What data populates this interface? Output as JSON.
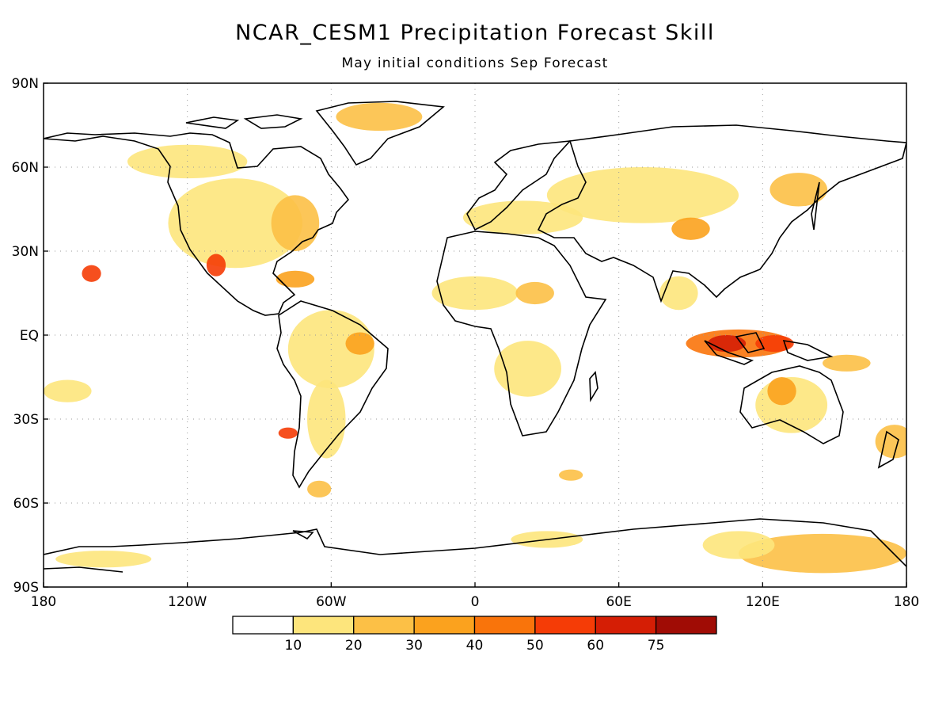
{
  "title": "NCAR_CESM1 Precipitation Forecast Skill",
  "subtitle": "May initial conditions  Sep Forecast",
  "map": {
    "lon_range": [
      -180,
      180
    ],
    "lat_range": [
      -90,
      90
    ],
    "x_ticks": [
      {
        "label": "180",
        "lon": -180
      },
      {
        "label": "120W",
        "lon": -120
      },
      {
        "label": "60W",
        "lon": -60
      },
      {
        "label": "0",
        "lon": 0
      },
      {
        "label": "60E",
        "lon": 60
      },
      {
        "label": "120E",
        "lon": 120
      },
      {
        "label": "180",
        "lon": 180
      }
    ],
    "y_ticks": [
      {
        "label": "90N",
        "lat": 90
      },
      {
        "label": "60N",
        "lat": 60
      },
      {
        "label": "30N",
        "lat": 30
      },
      {
        "label": "EQ",
        "lat": 0
      },
      {
        "label": "30S",
        "lat": -30
      },
      {
        "label": "60S",
        "lat": -60
      },
      {
        "label": "90S",
        "lat": -90
      }
    ],
    "gridlines": "dotted"
  },
  "colorbar": {
    "labels": [
      "10",
      "20",
      "30",
      "40",
      "50",
      "60",
      "75"
    ],
    "colors": [
      "#ffffff",
      "#fde57c",
      "#fcc046",
      "#fba21e",
      "#f9740b",
      "#f53c06",
      "#d51e05",
      "#a00c05"
    ]
  },
  "skill_regions": [
    {
      "lon": -100,
      "lat": 40,
      "rx": 28,
      "ry": 16,
      "level": 1
    },
    {
      "lon": -75,
      "lat": 40,
      "rx": 10,
      "ry": 10,
      "level": 2
    },
    {
      "lon": -120,
      "lat": 62,
      "rx": 25,
      "ry": 6,
      "level": 1
    },
    {
      "lon": -40,
      "lat": 78,
      "rx": 18,
      "ry": 5,
      "level": 2
    },
    {
      "lon": -108,
      "lat": 25,
      "rx": 4,
      "ry": 4,
      "level": 5
    },
    {
      "lon": -160,
      "lat": 22,
      "rx": 4,
      "ry": 3,
      "level": 5
    },
    {
      "lon": -75,
      "lat": 20,
      "rx": 8,
      "ry": 3,
      "level": 3
    },
    {
      "lon": -60,
      "lat": -5,
      "rx": 18,
      "ry": 14,
      "level": 1
    },
    {
      "lon": -48,
      "lat": -3,
      "rx": 6,
      "ry": 4,
      "level": 3
    },
    {
      "lon": -62,
      "lat": -30,
      "rx": 8,
      "ry": 14,
      "level": 1
    },
    {
      "lon": -78,
      "lat": -35,
      "rx": 4,
      "ry": 2,
      "level": 5
    },
    {
      "lon": -65,
      "lat": -55,
      "rx": 5,
      "ry": 3,
      "level": 2
    },
    {
      "lon": 0,
      "lat": 15,
      "rx": 18,
      "ry": 6,
      "level": 1
    },
    {
      "lon": 25,
      "lat": 15,
      "rx": 8,
      "ry": 4,
      "level": 2
    },
    {
      "lon": 22,
      "lat": -12,
      "rx": 14,
      "ry": 10,
      "level": 1
    },
    {
      "lon": 20,
      "lat": 42,
      "rx": 25,
      "ry": 6,
      "level": 1
    },
    {
      "lon": 70,
      "lat": 50,
      "rx": 40,
      "ry": 10,
      "level": 1
    },
    {
      "lon": 90,
      "lat": 38,
      "rx": 8,
      "ry": 4,
      "level": 3
    },
    {
      "lon": 135,
      "lat": 52,
      "rx": 12,
      "ry": 6,
      "level": 2
    },
    {
      "lon": 110,
      "lat": -3,
      "rx": 22,
      "ry": 5,
      "level": 4
    },
    {
      "lon": 105,
      "lat": -3,
      "rx": 8,
      "ry": 3,
      "level": 6
    },
    {
      "lon": 125,
      "lat": -3,
      "rx": 8,
      "ry": 3,
      "level": 5
    },
    {
      "lon": 132,
      "lat": -25,
      "rx": 15,
      "ry": 10,
      "level": 1
    },
    {
      "lon": 128,
      "lat": -20,
      "rx": 6,
      "ry": 5,
      "level": 3
    },
    {
      "lon": 155,
      "lat": -10,
      "rx": 10,
      "ry": 3,
      "level": 2
    },
    {
      "lon": 85,
      "lat": 15,
      "rx": 8,
      "ry": 6,
      "level": 1
    },
    {
      "lon": 145,
      "lat": -78,
      "rx": 35,
      "ry": 7,
      "level": 2
    },
    {
      "lon": 110,
      "lat": -75,
      "rx": 15,
      "ry": 5,
      "level": 1
    },
    {
      "lon": 30,
      "lat": -73,
      "rx": 15,
      "ry": 3,
      "level": 1
    },
    {
      "lon": -155,
      "lat": -80,
      "rx": 20,
      "ry": 3,
      "level": 1
    },
    {
      "lon": 40,
      "lat": -50,
      "rx": 5,
      "ry": 2,
      "level": 2
    },
    {
      "lon": -170,
      "lat": -20,
      "rx": 10,
      "ry": 4,
      "level": 1
    },
    {
      "lon": 175,
      "lat": -38,
      "rx": 8,
      "ry": 6,
      "level": 2
    }
  ]
}
